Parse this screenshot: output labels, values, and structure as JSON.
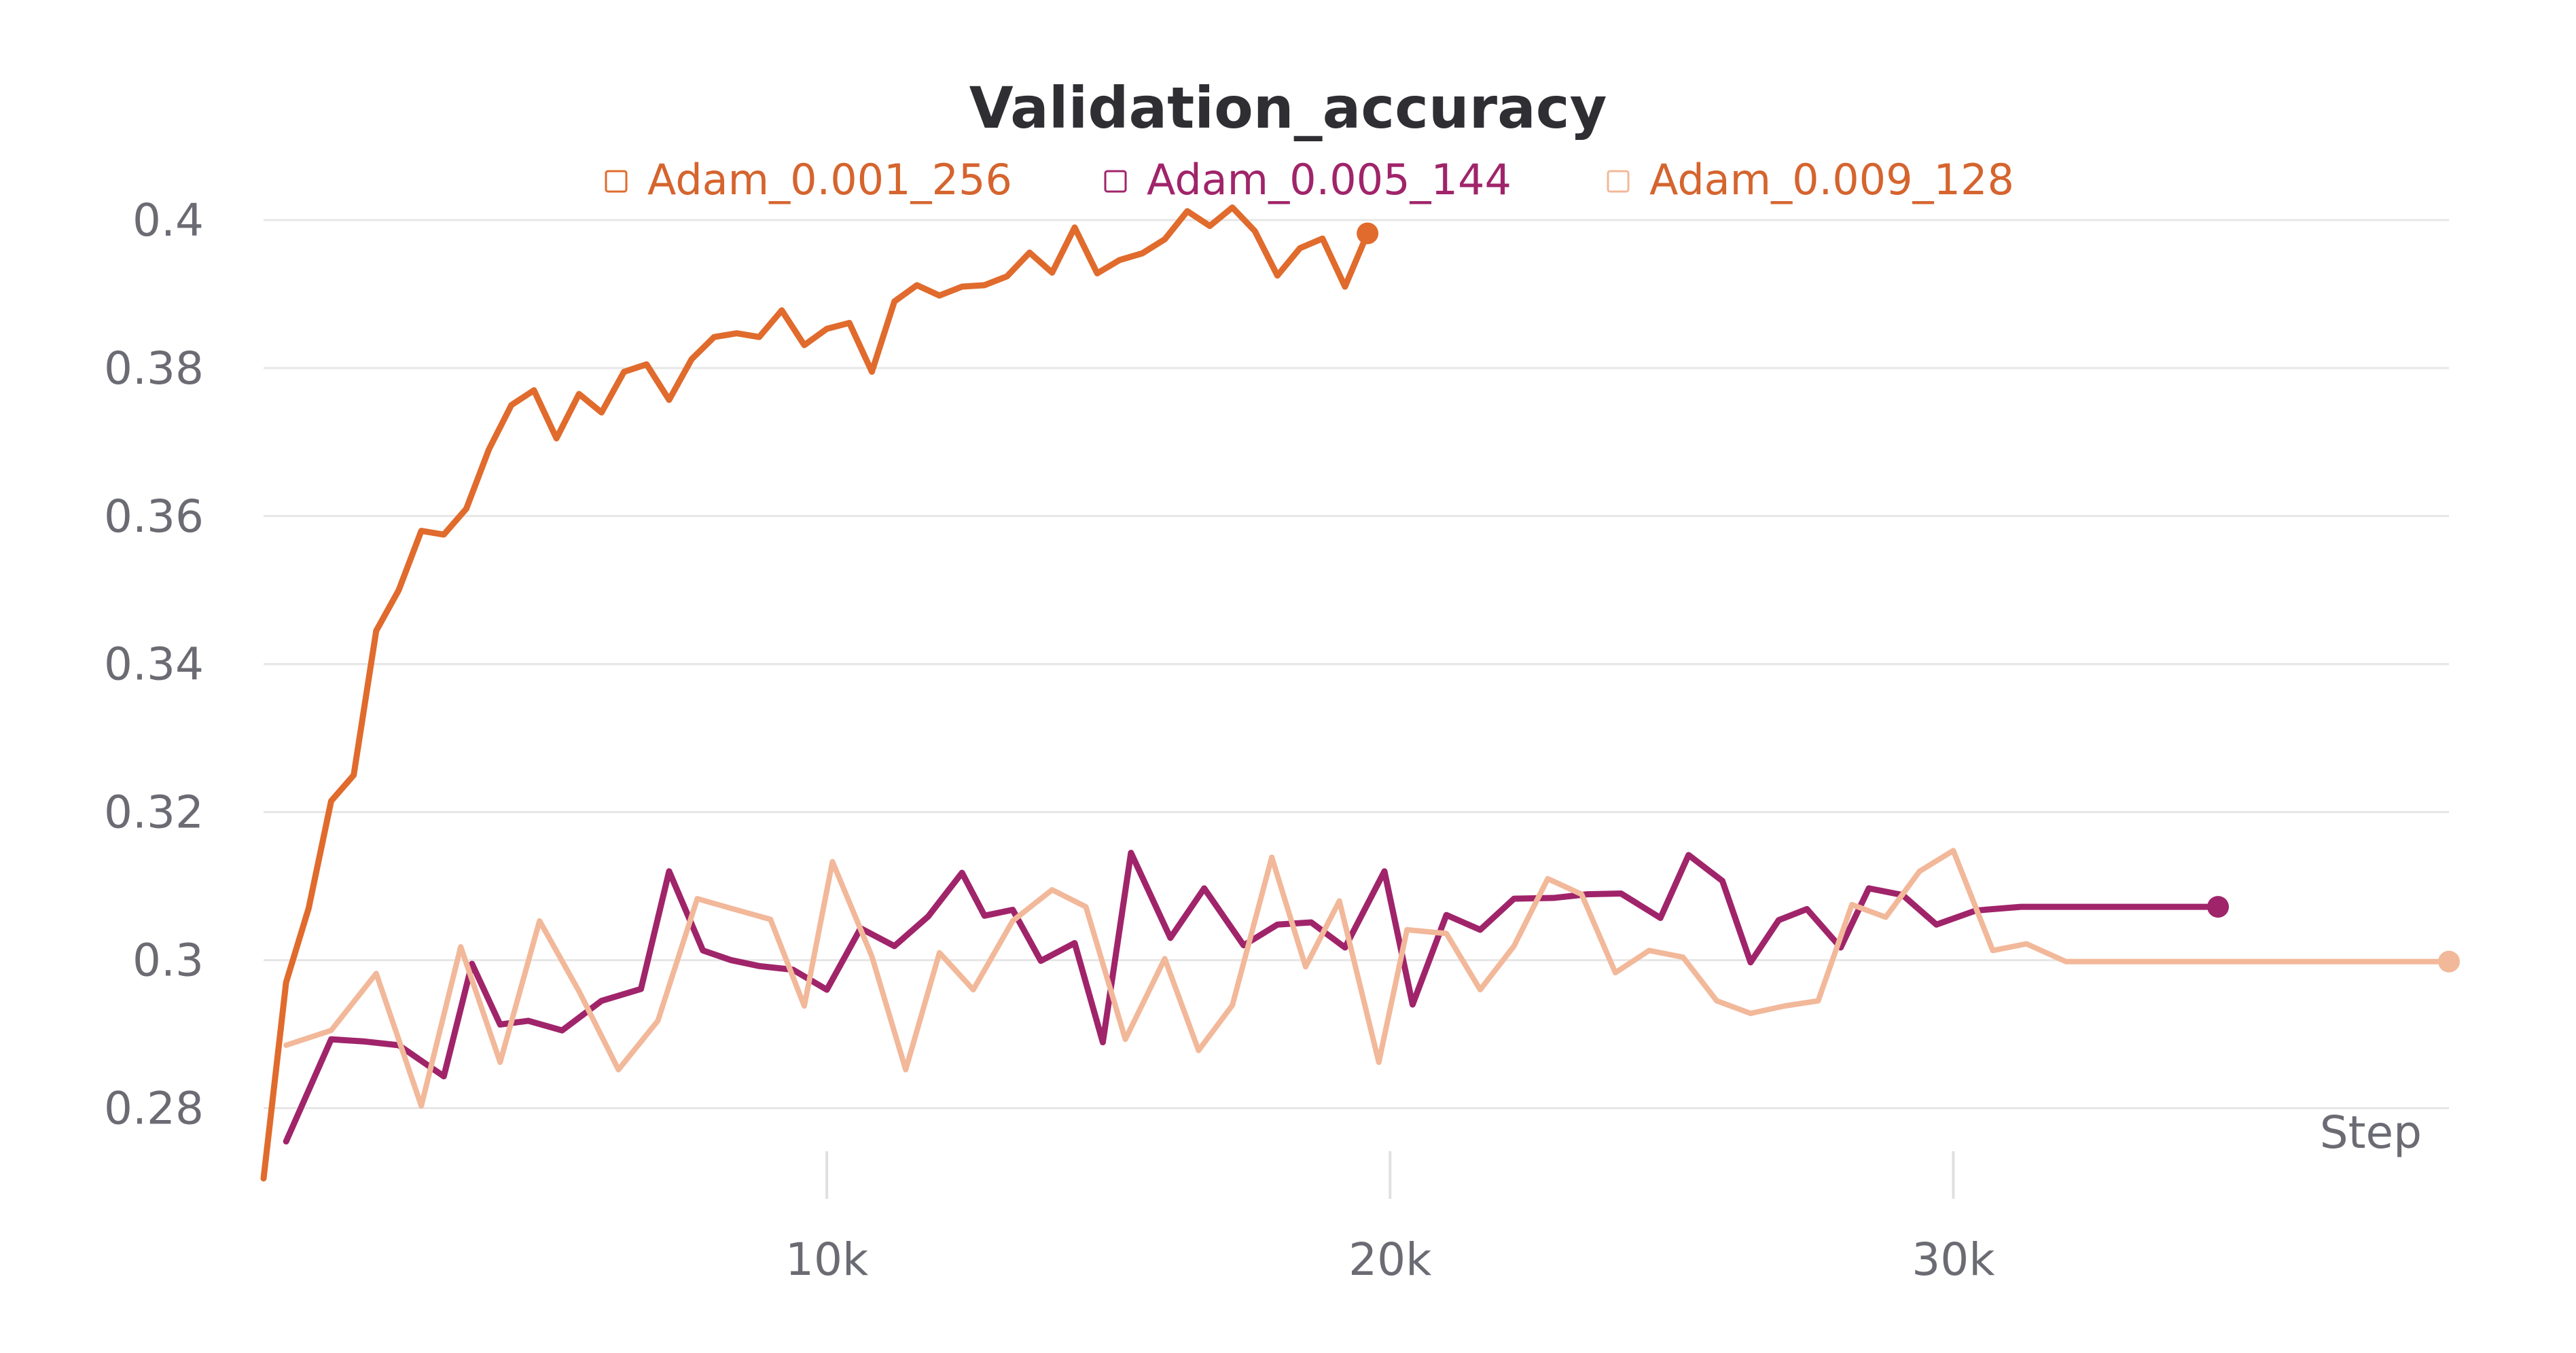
{
  "chart_data": {
    "type": "line",
    "title": "Validation_accuracy",
    "xlabel": "Step",
    "ylabel": "",
    "xlim": [
      0,
      38800
    ],
    "ylim": [
      0.2705,
      0.4022
    ],
    "x_ticks": [
      10000,
      20000,
      30000
    ],
    "x_tick_labels": [
      "10k",
      "20k",
      "30k"
    ],
    "y_ticks": [
      0.28,
      0.3,
      0.32,
      0.34,
      0.36,
      0.38,
      0.4
    ],
    "y_tick_labels": [
      "0.28",
      "0.3",
      "0.32",
      "0.34",
      "0.36",
      "0.38",
      "0.4"
    ],
    "grid": true,
    "legend_position": "top-center",
    "series": [
      {
        "name": "Adam_0.001_256",
        "color": "#E06B2D",
        "x": [
          0,
          400,
          800,
          1200,
          1600,
          2000,
          2400,
          2800,
          3200,
          3600,
          4000,
          4400,
          4800,
          5200,
          5600,
          6000,
          6400,
          6800,
          7200,
          7600,
          8000,
          8400,
          8800,
          9200,
          9600,
          10000,
          10400,
          10800,
          11200,
          11600,
          12000,
          12400,
          12800,
          13200,
          13600,
          14000,
          14400,
          14800,
          15200,
          15600,
          16000,
          16400,
          16800,
          17200,
          17600,
          18000,
          18400,
          18800,
          19200,
          19600
        ],
        "y": [
          0.2705,
          0.297,
          0.307,
          0.3215,
          0.325,
          0.3445,
          0.35,
          0.358,
          0.3575,
          0.361,
          0.369,
          0.375,
          0.377,
          0.3705,
          0.3765,
          0.374,
          0.3795,
          0.3805,
          0.3757,
          0.3812,
          0.3842,
          0.3847,
          0.3842,
          0.3878,
          0.3831,
          0.3853,
          0.3861,
          0.3795,
          0.389,
          0.3912,
          0.3898,
          0.391,
          0.3912,
          0.3924,
          0.3956,
          0.3929,
          0.399,
          0.3928,
          0.3946,
          0.3955,
          0.3974,
          0.4012,
          0.3992,
          0.4017,
          0.3985,
          0.3925,
          0.3962,
          0.3975,
          0.391,
          0.3982
        ]
      },
      {
        "name": "Adam_0.005_144",
        "color": "#A0246A",
        "x": [
          400,
          1200,
          1800,
          2400,
          3200,
          3700,
          4200,
          4700,
          5300,
          6000,
          6700,
          7200,
          7800,
          8300,
          8800,
          9400,
          10000,
          10600,
          11200,
          11800,
          12400,
          12800,
          13300,
          13800,
          14400,
          14900,
          15400,
          16100,
          16700,
          17400,
          18000,
          18600,
          19200,
          19900,
          20400,
          21000,
          21600,
          22200,
          22900,
          23500,
          24100,
          24800,
          25300,
          25900,
          26400,
          26900,
          27400,
          28000,
          28500,
          29100,
          29700,
          30400,
          31200,
          31700,
          32300,
          32900,
          33600,
          34100,
          34700
        ],
        "y": [
          0.2755,
          0.2893,
          0.289,
          0.2885,
          0.2843,
          0.2995,
          0.2913,
          0.2918,
          0.2905,
          0.2945,
          0.2961,
          0.312,
          0.3013,
          0.3,
          0.2992,
          0.2987,
          0.296,
          0.3043,
          0.3019,
          0.3059,
          0.3118,
          0.306,
          0.3068,
          0.2999,
          0.3023,
          0.2889,
          0.3145,
          0.303,
          0.3097,
          0.302,
          0.3048,
          0.3051,
          0.3017,
          0.312,
          0.294,
          0.3061,
          0.3041,
          0.3083,
          0.3084,
          0.3089,
          0.309,
          0.3057,
          0.3142,
          0.3107,
          0.2997,
          0.3054,
          0.3069,
          0.3017,
          0.3097,
          0.3088,
          0.3048,
          0.3067,
          0.3072,
          0.3072,
          0.3072,
          0.3072,
          0.3072,
          0.3072,
          0.3072
        ]
      },
      {
        "name": "Adam_0.009_128",
        "color": "#F2B89A",
        "x": [
          400,
          1200,
          2000,
          2800,
          3500,
          4200,
          4900,
          5600,
          6300,
          7000,
          7700,
          8300,
          9000,
          9600,
          10100,
          10800,
          11400,
          12000,
          12600,
          13300,
          14000,
          14600,
          15300,
          16000,
          16600,
          17200,
          17900,
          18500,
          19100,
          19800,
          20300,
          21000,
          21600,
          22200,
          22800,
          23400,
          24000,
          24600,
          25200,
          25800,
          26400,
          27000,
          27600,
          28200,
          28800,
          29400,
          30000,
          30700,
          31300,
          32000,
          32700,
          33400,
          34000,
          34700,
          35300,
          35900,
          36500,
          37100,
          37700,
          38400,
          38800
        ],
        "y": [
          0.2885,
          0.2905,
          0.2982,
          0.2803,
          0.3018,
          0.2862,
          0.3053,
          0.2958,
          0.2852,
          0.2918,
          0.3083,
          0.307,
          0.3055,
          0.2938,
          0.3133,
          0.3005,
          0.2852,
          0.301,
          0.296,
          0.3053,
          0.3095,
          0.3072,
          0.2893,
          0.3002,
          0.2878,
          0.2939,
          0.3139,
          0.2991,
          0.308,
          0.2862,
          0.3041,
          0.3036,
          0.296,
          0.3019,
          0.311,
          0.3089,
          0.2983,
          0.3013,
          0.3004,
          0.2945,
          0.2928,
          0.2938,
          0.2945,
          0.3075,
          0.3058,
          0.312,
          0.3148,
          0.3013,
          0.3022,
          0.2998,
          0.2998,
          0.2998,
          0.2998,
          0.2998,
          0.2998,
          0.2998,
          0.2998,
          0.2998,
          0.2998,
          0.2998,
          0.2998
        ]
      }
    ]
  }
}
